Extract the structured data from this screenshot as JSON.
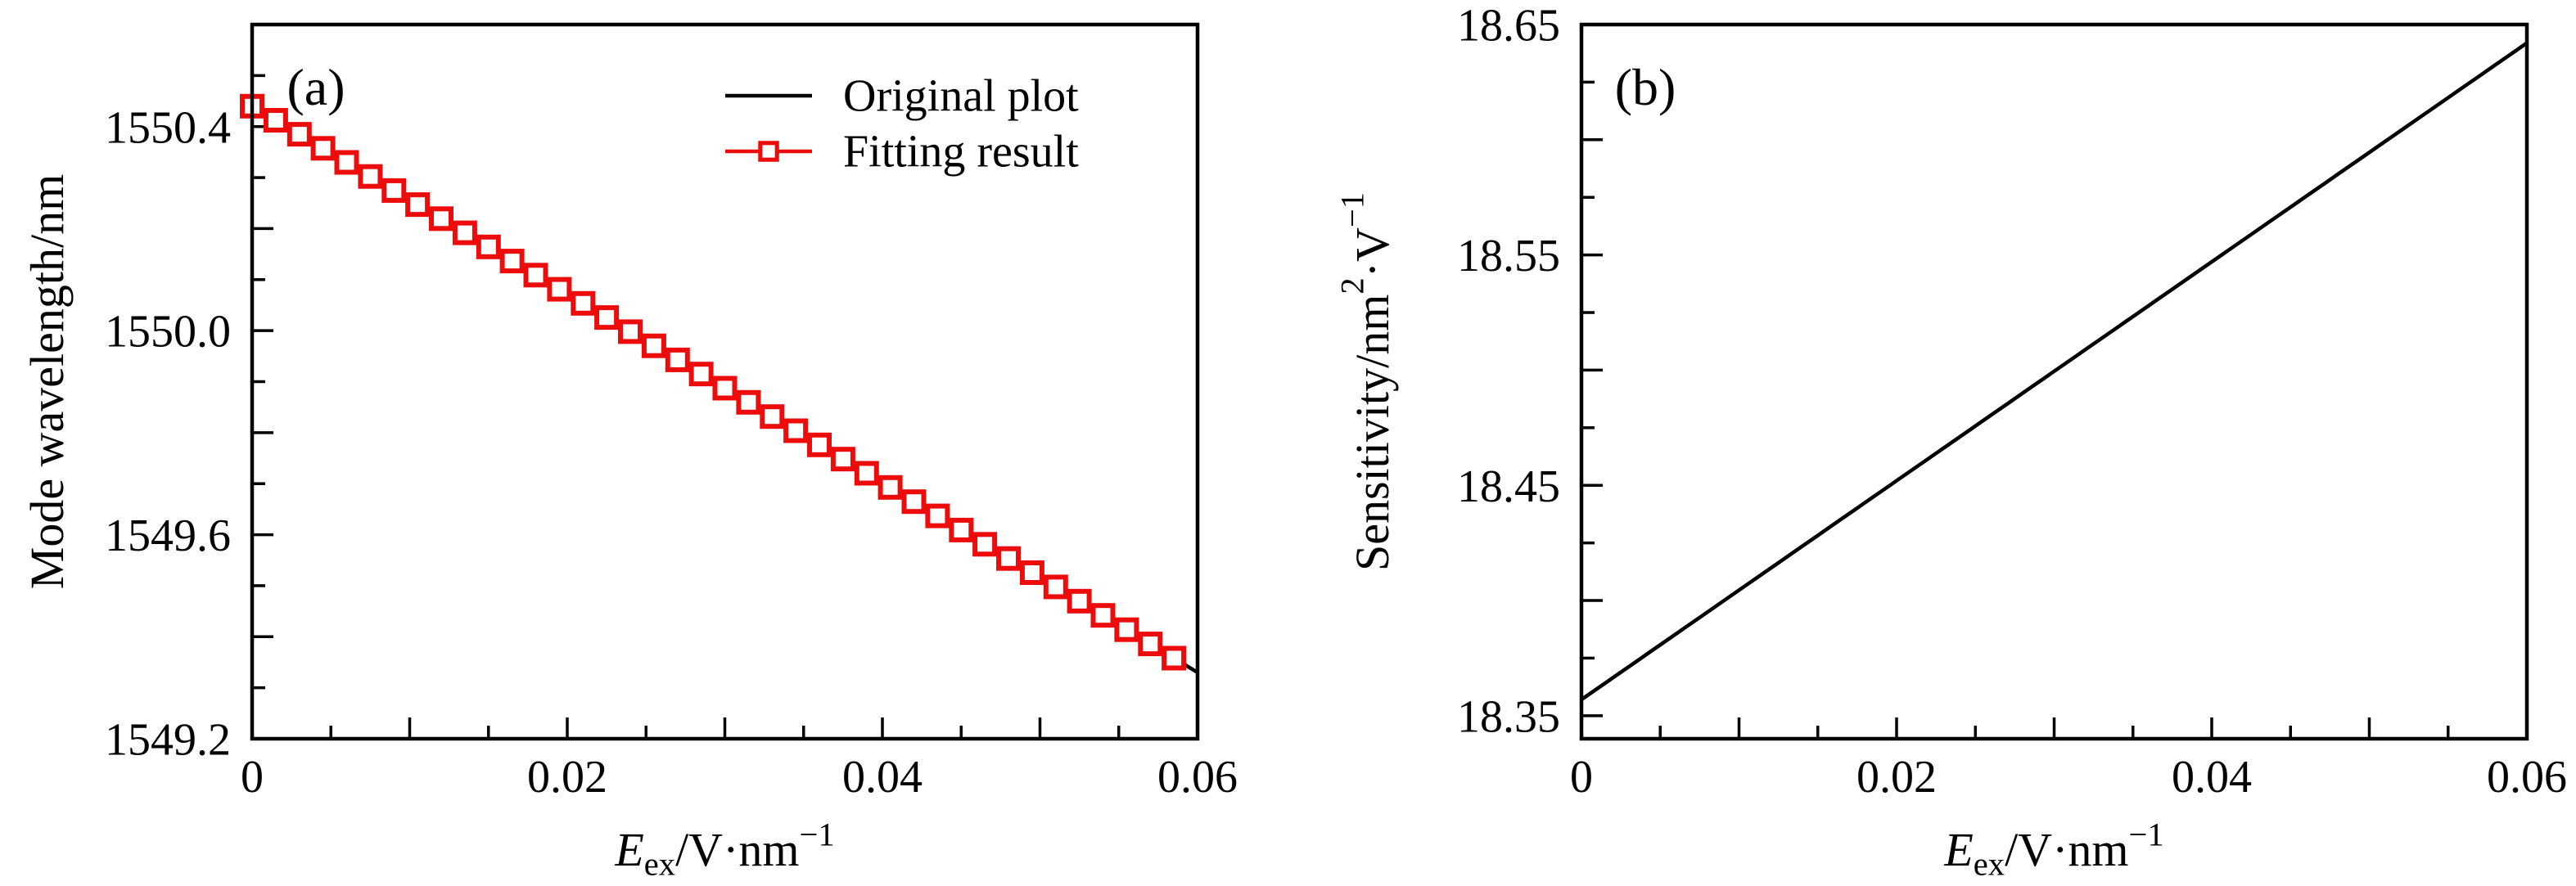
{
  "figure": {
    "background": "#ffffff",
    "line_color": "#000000",
    "fit_color": "#ed0c0c"
  },
  "chart_data": [
    {
      "type": "line",
      "panel_label": "(a)",
      "xlabel_parts": [
        {
          "t": "E",
          "style": "italic"
        },
        {
          "t": "ex",
          "script": "sub"
        },
        {
          "t": "/V·nm"
        },
        {
          "t": "−1",
          "script": "sup"
        }
      ],
      "ylabel_parts": [
        {
          "t": "Mode wavelength/nm"
        }
      ],
      "xlim": [
        0,
        0.06
      ],
      "ylim": [
        1549.2,
        1550.6
      ],
      "x_ticks": {
        "start": 0,
        "minor_step": 0.005,
        "long_every": 2,
        "labels": [
          {
            "v": 0,
            "text": "0"
          },
          {
            "v": 0.02,
            "text": "0.02"
          },
          {
            "v": 0.04,
            "text": "0.04"
          },
          {
            "v": 0.06,
            "text": "0.06"
          }
        ]
      },
      "y_ticks": {
        "start": 1549.2,
        "minor_step": 0.1,
        "long_every": 2,
        "labels": [
          {
            "v": 1550.4,
            "text": "1550.4"
          },
          {
            "v": 1550.0,
            "text": "1550.0"
          },
          {
            "v": 1549.6,
            "text": "1549.6"
          },
          {
            "v": 1549.2,
            "text": "1549.2"
          }
        ]
      },
      "legend": [
        {
          "series": "original",
          "label": "Original plot"
        },
        {
          "series": "fitting",
          "label": "Fitting result"
        }
      ],
      "series": [
        {
          "id": "original",
          "name": "Original plot",
          "color": "#000000",
          "style": "line",
          "model": {
            "intercept": 1550.44,
            "slope": -18.36,
            "quad": -2.33
          },
          "x_range": [
            0,
            0.06
          ]
        },
        {
          "id": "fitting",
          "name": "Fitting result",
          "color": "#ed0c0c",
          "style": "line+marker",
          "marker": "open-square",
          "points": [
            [
              0.0,
              1550.44
            ],
            [
              0.0015,
              1550.4124
            ],
            [
              0.003,
              1550.3849
            ],
            [
              0.0045,
              1550.3573
            ],
            [
              0.006,
              1550.3298
            ],
            [
              0.0075,
              1550.3022
            ],
            [
              0.009,
              1550.2746
            ],
            [
              0.0105,
              1550.247
            ],
            [
              0.012,
              1550.2194
            ],
            [
              0.0135,
              1550.1917
            ],
            [
              0.015,
              1550.1641
            ],
            [
              0.0165,
              1550.1364
            ],
            [
              0.018,
              1550.1088
            ],
            [
              0.0195,
              1550.0811
            ],
            [
              0.021,
              1550.0534
            ],
            [
              0.0225,
              1550.0257
            ],
            [
              0.024,
              1549.998
            ],
            [
              0.0255,
              1549.9703
            ],
            [
              0.027,
              1549.9426
            ],
            [
              0.0285,
              1549.9149
            ],
            [
              0.03,
              1549.8871
            ],
            [
              0.0315,
              1549.8594
            ],
            [
              0.033,
              1549.8316
            ],
            [
              0.0345,
              1549.8038
            ],
            [
              0.036,
              1549.776
            ],
            [
              0.0375,
              1549.7482
            ],
            [
              0.039,
              1549.7204
            ],
            [
              0.0405,
              1549.6926
            ],
            [
              0.042,
              1549.6648
            ],
            [
              0.0435,
              1549.6369
            ],
            [
              0.045,
              1549.6091
            ],
            [
              0.0465,
              1549.5812
            ],
            [
              0.048,
              1549.5533
            ],
            [
              0.0495,
              1549.5255
            ],
            [
              0.051,
              1549.4976
            ],
            [
              0.0525,
              1549.4697
            ],
            [
              0.054,
              1549.4418
            ],
            [
              0.0555,
              1549.4138
            ],
            [
              0.057,
              1549.3859
            ],
            [
              0.0585,
              1549.358
            ]
          ]
        }
      ]
    },
    {
      "type": "line",
      "panel_label": "(b)",
      "xlabel_parts": [
        {
          "t": "E",
          "style": "italic"
        },
        {
          "t": "ex",
          "script": "sub"
        },
        {
          "t": "/V·nm"
        },
        {
          "t": "−1",
          "script": "sup"
        }
      ],
      "ylabel_parts": [
        {
          "t": "Sensitivity/nm"
        },
        {
          "t": "2",
          "script": "sup"
        },
        {
          "t": "·V"
        },
        {
          "t": "−1",
          "script": "sup"
        }
      ],
      "xlim": [
        0,
        0.06
      ],
      "ylim": [
        18.34,
        18.65
      ],
      "x_ticks": {
        "start": 0,
        "minor_step": 0.005,
        "long_every": 2,
        "labels": [
          {
            "v": 0,
            "text": "0"
          },
          {
            "v": 0.02,
            "text": "0.02"
          },
          {
            "v": 0.04,
            "text": "0.04"
          },
          {
            "v": 0.06,
            "text": "0.06"
          }
        ]
      },
      "y_ticks": {
        "start": 18.35,
        "minor_step": 0.025,
        "long_every": 2,
        "labels": [
          {
            "v": 18.65,
            "text": "18.65"
          },
          {
            "v": 18.55,
            "text": "18.55"
          },
          {
            "v": 18.45,
            "text": "18.45"
          },
          {
            "v": 18.35,
            "text": "18.35"
          }
        ]
      },
      "legend": [],
      "series": [
        {
          "id": "sensitivity",
          "name": "Sensitivity",
          "color": "#000000",
          "style": "line",
          "model": {
            "intercept": 18.357,
            "slope": 4.75
          },
          "x_range": [
            0,
            0.06
          ],
          "points": [
            [
              0,
              18.357
            ],
            [
              0.06,
              18.642
            ]
          ]
        }
      ]
    }
  ]
}
